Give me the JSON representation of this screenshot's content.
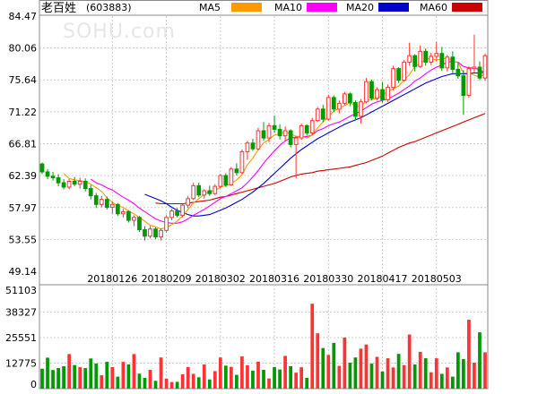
{
  "stock": {
    "name": "老百姓",
    "code": "(603883)",
    "watermark": "SOHU.com"
  },
  "colors": {
    "up": "#ff3333",
    "down": "#009900",
    "ma5": "#ff9900",
    "ma10": "#ff00ff",
    "ma20": "#0000cc",
    "ma60": "#cc0000",
    "grid": "#cccccc"
  },
  "chart_data": [
    {
      "type": "candlestick",
      "title": "老百姓 (603883)",
      "legend": [
        {
          "name": "MA5",
          "color": "#ff9900"
        },
        {
          "name": "MA10",
          "color": "#ff00ff"
        },
        {
          "name": "MA20",
          "color": "#0000cc"
        },
        {
          "name": "MA60",
          "color": "#cc0000"
        }
      ],
      "legend_placement": "top",
      "y_ticks": [
        "84.47",
        "80.06",
        "75.64",
        "71.22",
        "66.81",
        "62.39",
        "57.97",
        "53.55",
        "49.14"
      ],
      "ylim": [
        49.14,
        84.47
      ],
      "x_ticks": [
        "20180126",
        "20180209",
        "20180302",
        "20180316",
        "20180330",
        "20180417",
        "20180503"
      ],
      "x_tick_index": [
        13,
        23,
        33,
        43,
        53,
        63,
        73
      ],
      "grid": true,
      "candles": [
        [
          64.0,
          64.2,
          62.6,
          62.9
        ],
        [
          62.9,
          63.3,
          61.9,
          62.3
        ],
        [
          62.3,
          62.9,
          61.7,
          62.1
        ],
        [
          62.1,
          62.6,
          60.9,
          61.4
        ],
        [
          61.4,
          61.9,
          60.5,
          60.8
        ],
        [
          60.8,
          61.9,
          60.5,
          61.6
        ],
        [
          61.6,
          62.2,
          60.9,
          61.2
        ],
        [
          61.2,
          62.1,
          60.6,
          61.6
        ],
        [
          61.6,
          62.0,
          60.2,
          60.6
        ],
        [
          60.6,
          61.1,
          59.1,
          59.6
        ],
        [
          59.6,
          60.0,
          57.9,
          58.4
        ],
        [
          58.4,
          59.6,
          58.0,
          59.1
        ],
        [
          59.1,
          59.5,
          57.7,
          58.0
        ],
        [
          58.0,
          58.8,
          57.1,
          58.4
        ],
        [
          58.4,
          58.6,
          56.8,
          57.1
        ],
        [
          57.1,
          57.8,
          56.6,
          57.4
        ],
        [
          57.4,
          57.6,
          55.9,
          56.2
        ],
        [
          56.2,
          56.9,
          55.4,
          56.6
        ],
        [
          56.6,
          56.8,
          54.6,
          54.9
        ],
        [
          54.9,
          55.4,
          53.4,
          54.0
        ],
        [
          54.0,
          55.4,
          53.7,
          55.0
        ],
        [
          55.0,
          55.2,
          53.6,
          53.9
        ],
        [
          53.9,
          55.1,
          53.4,
          54.8
        ],
        [
          54.8,
          56.9,
          54.5,
          56.6
        ],
        [
          56.6,
          57.8,
          56.2,
          57.5
        ],
        [
          57.5,
          57.9,
          56.6,
          56.9
        ],
        [
          56.9,
          58.5,
          56.6,
          58.3
        ],
        [
          58.3,
          59.6,
          57.9,
          59.2
        ],
        [
          59.2,
          61.4,
          59.0,
          61.0
        ],
        [
          61.0,
          61.4,
          59.4,
          59.7
        ],
        [
          59.7,
          60.5,
          59.2,
          60.3
        ],
        [
          60.3,
          61.0,
          59.6,
          59.9
        ],
        [
          59.9,
          61.2,
          59.7,
          60.9
        ],
        [
          60.9,
          62.6,
          60.6,
          62.4
        ],
        [
          62.4,
          62.7,
          60.8,
          61.1
        ],
        [
          61.1,
          63.6,
          61.0,
          63.3
        ],
        [
          63.3,
          64.1,
          62.4,
          62.8
        ],
        [
          62.8,
          66.0,
          62.6,
          65.7
        ],
        [
          65.7,
          67.2,
          64.6,
          66.9
        ],
        [
          66.9,
          67.5,
          65.8,
          66.1
        ],
        [
          66.1,
          69.0,
          65.9,
          68.6
        ],
        [
          68.6,
          69.8,
          67.2,
          67.6
        ],
        [
          67.6,
          69.7,
          67.0,
          69.3
        ],
        [
          69.3,
          70.7,
          68.3,
          68.8
        ],
        [
          68.8,
          69.5,
          67.4,
          67.9
        ],
        [
          67.9,
          69.2,
          67.2,
          68.6
        ],
        [
          68.6,
          68.8,
          66.3,
          66.7
        ],
        [
          66.7,
          67.9,
          62.0,
          67.6
        ],
        [
          67.6,
          69.6,
          67.3,
          69.3
        ],
        [
          69.3,
          69.5,
          67.9,
          68.3
        ],
        [
          68.3,
          70.4,
          68.0,
          70.0
        ],
        [
          70.0,
          71.9,
          69.8,
          71.6
        ],
        [
          71.6,
          72.2,
          69.8,
          70.2
        ],
        [
          70.2,
          73.6,
          70.0,
          73.2
        ],
        [
          73.2,
          73.5,
          71.2,
          71.6
        ],
        [
          71.6,
          72.8,
          71.0,
          72.4
        ],
        [
          72.4,
          74.0,
          72.1,
          73.7
        ],
        [
          73.7,
          73.9,
          72.0,
          72.5
        ],
        [
          72.5,
          72.8,
          70.1,
          70.6
        ],
        [
          70.6,
          73.0,
          69.6,
          72.6
        ],
        [
          72.6,
          75.9,
          72.4,
          75.4
        ],
        [
          75.4,
          75.7,
          72.8,
          73.1
        ],
        [
          73.1,
          74.6,
          72.8,
          74.3
        ],
        [
          74.3,
          75.3,
          72.5,
          72.9
        ],
        [
          72.9,
          75.0,
          72.6,
          74.6
        ],
        [
          74.6,
          77.6,
          74.2,
          77.2
        ],
        [
          77.2,
          77.4,
          75.2,
          75.6
        ],
        [
          75.6,
          78.4,
          75.4,
          78.1
        ],
        [
          78.1,
          80.8,
          77.6,
          79.0
        ],
        [
          79.0,
          79.2,
          76.8,
          77.5
        ],
        [
          77.5,
          80.4,
          77.3,
          79.6
        ],
        [
          79.6,
          80.0,
          77.6,
          78.1
        ],
        [
          78.1,
          79.4,
          77.7,
          78.9
        ],
        [
          78.9,
          80.9,
          78.2,
          79.3
        ],
        [
          79.3,
          80.2,
          76.9,
          77.3
        ],
        [
          77.3,
          79.1,
          76.8,
          78.8
        ],
        [
          78.8,
          79.6,
          76.6,
          77.1
        ],
        [
          77.1,
          78.0,
          75.8,
          76.2
        ],
        [
          76.2,
          77.0,
          70.8,
          73.5
        ],
        [
          73.5,
          77.5,
          73.2,
          77.2
        ],
        [
          77.2,
          81.9,
          76.6,
          77.4
        ],
        [
          77.4,
          78.2,
          75.6,
          75.9
        ],
        [
          75.9,
          79.3,
          75.5,
          79.0
        ]
      ],
      "ma5": [
        null,
        null,
        null,
        null,
        62.7,
        62.0,
        61.8,
        61.7,
        61.6,
        61.2,
        60.7,
        60.2,
        59.3,
        58.7,
        58.2,
        58.0,
        57.5,
        57.1,
        56.6,
        56.1,
        55.5,
        55.3,
        55.0,
        55.2,
        55.6,
        56.1,
        56.8,
        57.7,
        58.6,
        59.2,
        59.8,
        60.2,
        60.3,
        60.8,
        61.0,
        61.3,
        61.8,
        62.5,
        63.9,
        64.8,
        66.0,
        66.9,
        67.4,
        68.0,
        68.2,
        68.4,
        68.2,
        67.8,
        67.9,
        67.6,
        68.0,
        69.0,
        69.8,
        70.6,
        71.3,
        71.7,
        72.1,
        72.5,
        72.0,
        71.9,
        72.8,
        72.9,
        73.1,
        73.5,
        74.1,
        74.4,
        74.8,
        75.6,
        76.4,
        77.5,
        77.9,
        78.5,
        78.6,
        78.4,
        78.5,
        78.7,
        78.3,
        78.0,
        76.6,
        76.6,
        76.3,
        76.0,
        76.6
      ],
      "ma10": [
        null,
        null,
        null,
        null,
        null,
        null,
        null,
        null,
        null,
        61.9,
        61.4,
        61.1,
        60.7,
        60.4,
        59.9,
        59.4,
        59.0,
        58.5,
        57.9,
        57.4,
        56.9,
        56.4,
        56.1,
        55.9,
        55.8,
        55.8,
        56.0,
        56.4,
        56.9,
        57.3,
        57.7,
        58.2,
        58.7,
        59.2,
        59.5,
        59.9,
        60.3,
        60.7,
        61.4,
        62.2,
        63.1,
        64.1,
        65.0,
        65.8,
        66.6,
        67.2,
        67.6,
        67.7,
        67.8,
        67.8,
        68.0,
        68.6,
        68.9,
        69.3,
        69.6,
        69.8,
        70.2,
        70.6,
        71.0,
        71.3,
        71.8,
        72.3,
        72.6,
        72.8,
        73.0,
        73.4,
        73.8,
        74.3,
        74.8,
        75.5,
        75.9,
        76.5,
        77.0,
        77.4,
        77.7,
        78.1,
        78.2,
        78.1,
        77.5,
        77.3,
        77.3,
        77.0,
        76.7
      ],
      "ma20": [
        null,
        null,
        null,
        null,
        null,
        null,
        null,
        null,
        null,
        null,
        null,
        null,
        null,
        null,
        null,
        null,
        null,
        null,
        null,
        59.8,
        59.5,
        59.2,
        58.9,
        58.5,
        58.0,
        57.6,
        57.3,
        57.0,
        56.8,
        56.8,
        56.9,
        57.0,
        57.3,
        57.6,
        57.9,
        58.3,
        58.7,
        59.1,
        59.6,
        60.1,
        60.7,
        61.3,
        62.0,
        62.7,
        63.4,
        64.1,
        64.8,
        65.4,
        66.0,
        66.5,
        67.0,
        67.5,
        67.9,
        68.3,
        68.7,
        69.1,
        69.5,
        69.8,
        70.1,
        70.4,
        70.8,
        71.2,
        71.6,
        72.0,
        72.4,
        72.8,
        73.2,
        73.6,
        74.0,
        74.4,
        74.8,
        75.2,
        75.5,
        75.8,
        76.1,
        76.3,
        76.5,
        76.5,
        76.5,
        76.5,
        76.6,
        76.6,
        76.7
      ],
      "ma60": [
        null,
        null,
        null,
        null,
        null,
        null,
        null,
        null,
        null,
        null,
        null,
        null,
        null,
        null,
        null,
        null,
        null,
        null,
        null,
        null,
        null,
        58.6,
        58.5,
        58.5,
        58.5,
        58.5,
        58.5,
        58.6,
        58.7,
        58.8,
        58.9,
        59.0,
        59.2,
        59.4,
        59.5,
        59.7,
        59.9,
        60.1,
        60.3,
        60.5,
        60.7,
        60.9,
        61.1,
        61.3,
        61.6,
        61.9,
        62.2,
        62.4,
        62.6,
        62.7,
        62.8,
        63.0,
        63.1,
        63.2,
        63.3,
        63.4,
        63.5,
        63.6,
        63.8,
        64.0,
        64.2,
        64.5,
        64.8,
        65.1,
        65.5,
        65.9,
        66.3,
        66.6,
        66.9,
        67.1,
        67.4,
        67.7,
        68.0,
        68.3,
        68.6,
        68.9,
        69.2,
        69.5,
        69.8,
        70.1,
        70.4,
        70.7,
        71.0
      ]
    },
    {
      "type": "bar",
      "y_ticks": [
        "51103",
        "38327",
        "25551",
        "12775",
        "0"
      ],
      "ylim": [
        0,
        51103
      ],
      "grid": true,
      "volume": [
        10000,
        15500,
        9300,
        10300,
        11200,
        17300,
        11800,
        10800,
        10300,
        15100,
        12600,
        6700,
        13400,
        10800,
        6000,
        13400,
        12100,
        17300,
        7500,
        5400,
        9400,
        3900,
        15600,
        5000,
        3300,
        3400,
        7200,
        10800,
        7400,
        5700,
        12100,
        4600,
        8800,
        15600,
        11500,
        10900,
        6900,
        16100,
        11700,
        9000,
        13500,
        9400,
        5100,
        10800,
        9600,
        16400,
        11200,
        8000,
        10700,
        5400,
        42500,
        27700,
        20300,
        16900,
        22900,
        11400,
        25600,
        13000,
        15600,
        20000,
        22100,
        12500,
        15900,
        8600,
        15200,
        10600,
        17400,
        11800,
        27100,
        12100,
        18400,
        15200,
        8200,
        15200,
        7400,
        10600,
        6000,
        18200,
        14800,
        34500,
        13000,
        28200,
        18200
      ],
      "volume_up": [
        false,
        false,
        false,
        false,
        false,
        true,
        false,
        true,
        false,
        false,
        false,
        true,
        false,
        true,
        false,
        true,
        false,
        true,
        false,
        false,
        true,
        false,
        true,
        true,
        true,
        false,
        true,
        true,
        true,
        false,
        true,
        false,
        true,
        true,
        false,
        true,
        false,
        true,
        true,
        false,
        true,
        false,
        true,
        false,
        false,
        true,
        false,
        true,
        true,
        false,
        true,
        true,
        false,
        true,
        false,
        true,
        true,
        false,
        false,
        true,
        true,
        false,
        true,
        false,
        true,
        true,
        false,
        true,
        true,
        false,
        true,
        false,
        true,
        true,
        false,
        true,
        false,
        false,
        false,
        true,
        true,
        false,
        true
      ]
    }
  ]
}
